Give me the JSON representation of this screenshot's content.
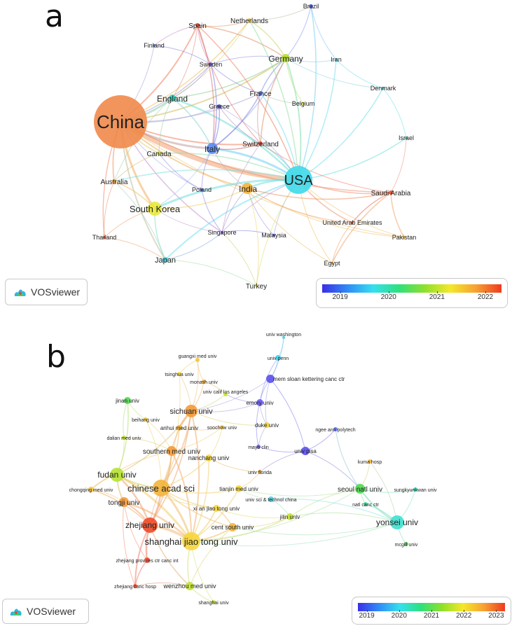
{
  "panel_a": {
    "letter": "a",
    "logo_text": "VOSviewer",
    "legend_ticks": [
      "2019",
      "2020",
      "2021",
      "2022"
    ],
    "nodes": [
      {
        "id": "china",
        "label": "China",
        "color": "#f08a4b"
      },
      {
        "id": "usa",
        "label": "USA",
        "color": "#3fd9ea"
      },
      {
        "id": "south-korea",
        "label": "South Korea",
        "color": "#e7ea3a"
      },
      {
        "id": "india",
        "label": "India",
        "color": "#f3b23a"
      },
      {
        "id": "italy",
        "label": "Italy",
        "color": "#5b8df0"
      },
      {
        "id": "england",
        "label": "England",
        "color": "#2fd6b8"
      },
      {
        "id": "germany",
        "label": "Germany",
        "color": "#b8e02a"
      },
      {
        "id": "japan",
        "label": "Japan",
        "color": "#34d2e8"
      },
      {
        "id": "spain",
        "label": "Spain",
        "color": "#e9402a"
      },
      {
        "id": "netherlands",
        "label": "Netherlands",
        "color": "#f6c338"
      },
      {
        "id": "brazil",
        "label": "Brazil",
        "color": "#4f62ef"
      },
      {
        "id": "finland",
        "label": "Finland",
        "color": "#5c7df2"
      },
      {
        "id": "sweden",
        "label": "Sweden",
        "color": "#6b62ee"
      },
      {
        "id": "iran",
        "label": "Iran",
        "color": "#35d4ea"
      },
      {
        "id": "france",
        "label": "France",
        "color": "#4d6ff0"
      },
      {
        "id": "greece",
        "label": "Greece",
        "color": "#3d4ee6"
      },
      {
        "id": "belgium",
        "label": "Belgium",
        "color": "#d6e22e"
      },
      {
        "id": "denmark",
        "label": "Denmark",
        "color": "#39d0ea"
      },
      {
        "id": "israel",
        "label": "Israel",
        "color": "#39d6c0"
      },
      {
        "id": "switzerland",
        "label": "Switzerland",
        "color": "#ee3a20"
      },
      {
        "id": "canada",
        "label": "Canada",
        "color": "#cde232"
      },
      {
        "id": "australia",
        "label": "Australia",
        "color": "#f39a3a"
      },
      {
        "id": "poland",
        "label": "Poland",
        "color": "#3e3ee6"
      },
      {
        "id": "saudi-arabia",
        "label": "Saudi Arabia",
        "color": "#ee4a2a"
      },
      {
        "id": "uae",
        "label": "United Arab Emirates",
        "color": "#ee5a2a"
      },
      {
        "id": "singapore",
        "label": "Singapore",
        "color": "#8c5ff0"
      },
      {
        "id": "malaysia",
        "label": "Malaysia",
        "color": "#5d4fef"
      },
      {
        "id": "pakistan",
        "label": "Pakistan",
        "color": "#f6c83c"
      },
      {
        "id": "thailand",
        "label": "Thailand",
        "color": "#ef4a2a"
      },
      {
        "id": "egypt",
        "label": "Egypt",
        "color": "#f6a83a"
      },
      {
        "id": "turkey",
        "label": "Turkey",
        "color": "#e6e63a"
      }
    ]
  },
  "panel_b": {
    "letter": "b",
    "logo_text": "VOSviewer",
    "legend_ticks": [
      "2019",
      "2020",
      "2021",
      "2022",
      "2023"
    ],
    "nodes": [
      {
        "id": "univ-washington",
        "label": "univ washington",
        "color": "#3fd3ea"
      },
      {
        "id": "univ-penn",
        "label": "univ penn",
        "color": "#3fd3ea"
      },
      {
        "id": "mem-sloan",
        "label": "mem sloan kettering canc ctr",
        "color": "#5a4fee"
      },
      {
        "id": "guangxi",
        "label": "guangxi med univ",
        "color": "#f3c43a"
      },
      {
        "id": "tsinghua",
        "label": "tsinghua univ",
        "color": "#f6d63c"
      },
      {
        "id": "monash",
        "label": "monash univ",
        "color": "#f3b43a"
      },
      {
        "id": "ucla",
        "label": "univ calif los angeles",
        "color": "#c6e232"
      },
      {
        "id": "jinan",
        "label": "jinan univ",
        "color": "#4fd84f"
      },
      {
        "id": "sichuan",
        "label": "sichuan univ",
        "color": "#f39a3a"
      },
      {
        "id": "emory",
        "label": "emory univ",
        "color": "#6b5cef"
      },
      {
        "id": "beihang",
        "label": "beihang univ",
        "color": "#f6c83c"
      },
      {
        "id": "soochow",
        "label": "soochow univ",
        "color": "#f6c83c"
      },
      {
        "id": "anhui",
        "label": "anhui med univ",
        "color": "#f3b43a"
      },
      {
        "id": "duke",
        "label": "duke univ",
        "color": "#f3d03a"
      },
      {
        "id": "ngee",
        "label": "ngee ann polytech",
        "color": "#5a6ff0"
      },
      {
        "id": "dalian",
        "label": "dalian med univ",
        "color": "#c6e232"
      },
      {
        "id": "southern",
        "label": "southern med univ",
        "color": "#f39a3a"
      },
      {
        "id": "mayo",
        "label": "mayo clin",
        "color": "#6b5cef"
      },
      {
        "id": "univ-pisa",
        "label": "univ pisa",
        "color": "#5a4fee"
      },
      {
        "id": "fudan",
        "label": "fudan univ",
        "color": "#b6e232"
      },
      {
        "id": "nanchang",
        "label": "nanchang univ",
        "color": "#f6d63c"
      },
      {
        "id": "univ-florida",
        "label": "univ florida",
        "color": "#f3b43a"
      },
      {
        "id": "kuma",
        "label": "kuma hosp",
        "color": "#f3b43a"
      },
      {
        "id": "chongqing",
        "label": "chongqing med univ",
        "color": "#f6c83c"
      },
      {
        "id": "chinese-acad",
        "label": "chinese acad sci",
        "color": "#f3b43a"
      },
      {
        "id": "tianjin",
        "label": "tianjin med univ",
        "color": "#f6d63c"
      },
      {
        "id": "seoul",
        "label": "seoul natl univ",
        "color": "#4fd84f"
      },
      {
        "id": "sungkyunkwan",
        "label": "sungkyunkwan univ",
        "color": "#3fd9c0"
      },
      {
        "id": "tongji",
        "label": "tongji univ",
        "color": "#f39a3a"
      },
      {
        "id": "ustc",
        "label": "univ sci & technol china",
        "color": "#3fd3ea"
      },
      {
        "id": "natl-canc",
        "label": "natl canc ctr",
        "color": "#3fd9a0"
      },
      {
        "id": "xian",
        "label": "xi an jiao tong univ",
        "color": "#f6d63c"
      },
      {
        "id": "jilin",
        "label": "jilin univ",
        "color": "#c6e232"
      },
      {
        "id": "yonsei",
        "label": "yonsei univ",
        "color": "#3fe0d0"
      },
      {
        "id": "zhejiang",
        "label": "zhejiang univ",
        "color": "#ee4a2a"
      },
      {
        "id": "cent-south",
        "label": "cent south univ",
        "color": "#f3b43a"
      },
      {
        "id": "shanghai-jt",
        "label": "shanghai jiao tong univ",
        "color": "#f6d63c"
      },
      {
        "id": "mcgill",
        "label": "mcgill univ",
        "color": "#4fd84f"
      },
      {
        "id": "zhejiang-prov",
        "label": "zhejiang prov res ctr canc int",
        "color": "#ee4a2a"
      },
      {
        "id": "zhejiang-canc",
        "label": "zhejiang canc hosp",
        "color": "#ee4a2a"
      },
      {
        "id": "wenzhou",
        "label": "wenzhou med univ",
        "color": "#c6e232"
      },
      {
        "id": "shanghai-univ",
        "label": "shanghai univ",
        "color": "#c6e232"
      }
    ]
  }
}
